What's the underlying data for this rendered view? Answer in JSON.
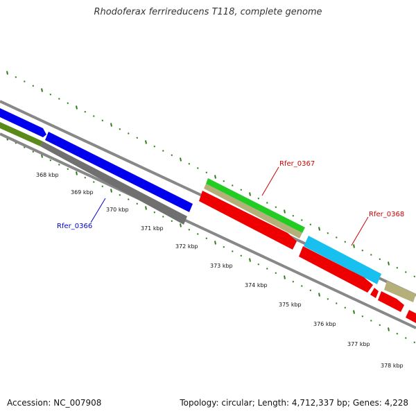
{
  "title": "Rhodoferax ferrireducens T118, complete genome",
  "footer": {
    "accession": "Accession: NC_007908",
    "summary": "Topology: circular; Length: 4,712,337 bp; Genes: 4,228"
  },
  "ruler": {
    "labels": [
      "368 kbp",
      "369 kbp",
      "370 kbp",
      "371 kbp",
      "372 kbp",
      "373 kbp",
      "374 kbp",
      "375 kbp",
      "376 kbp",
      "377 kbp",
      "378 kbp"
    ]
  },
  "gene_labels": [
    {
      "name": "Rfer_0366",
      "color": "#0000cc"
    },
    {
      "name": "Rfer_0367",
      "color": "#cc0000"
    },
    {
      "name": "Rfer_0368",
      "color": "#cc0000"
    }
  ],
  "colors": {
    "tick": "#2e7d1a",
    "backbone": "#888888",
    "cds_blue": "#0000ee",
    "cds_olive": "#5a8a1a",
    "cds_gray": "#707070",
    "cds_green": "#22cc22",
    "cds_tan": "#b5b07a",
    "cds_red": "#ee0000",
    "cds_cyan": "#18c0f0"
  }
}
